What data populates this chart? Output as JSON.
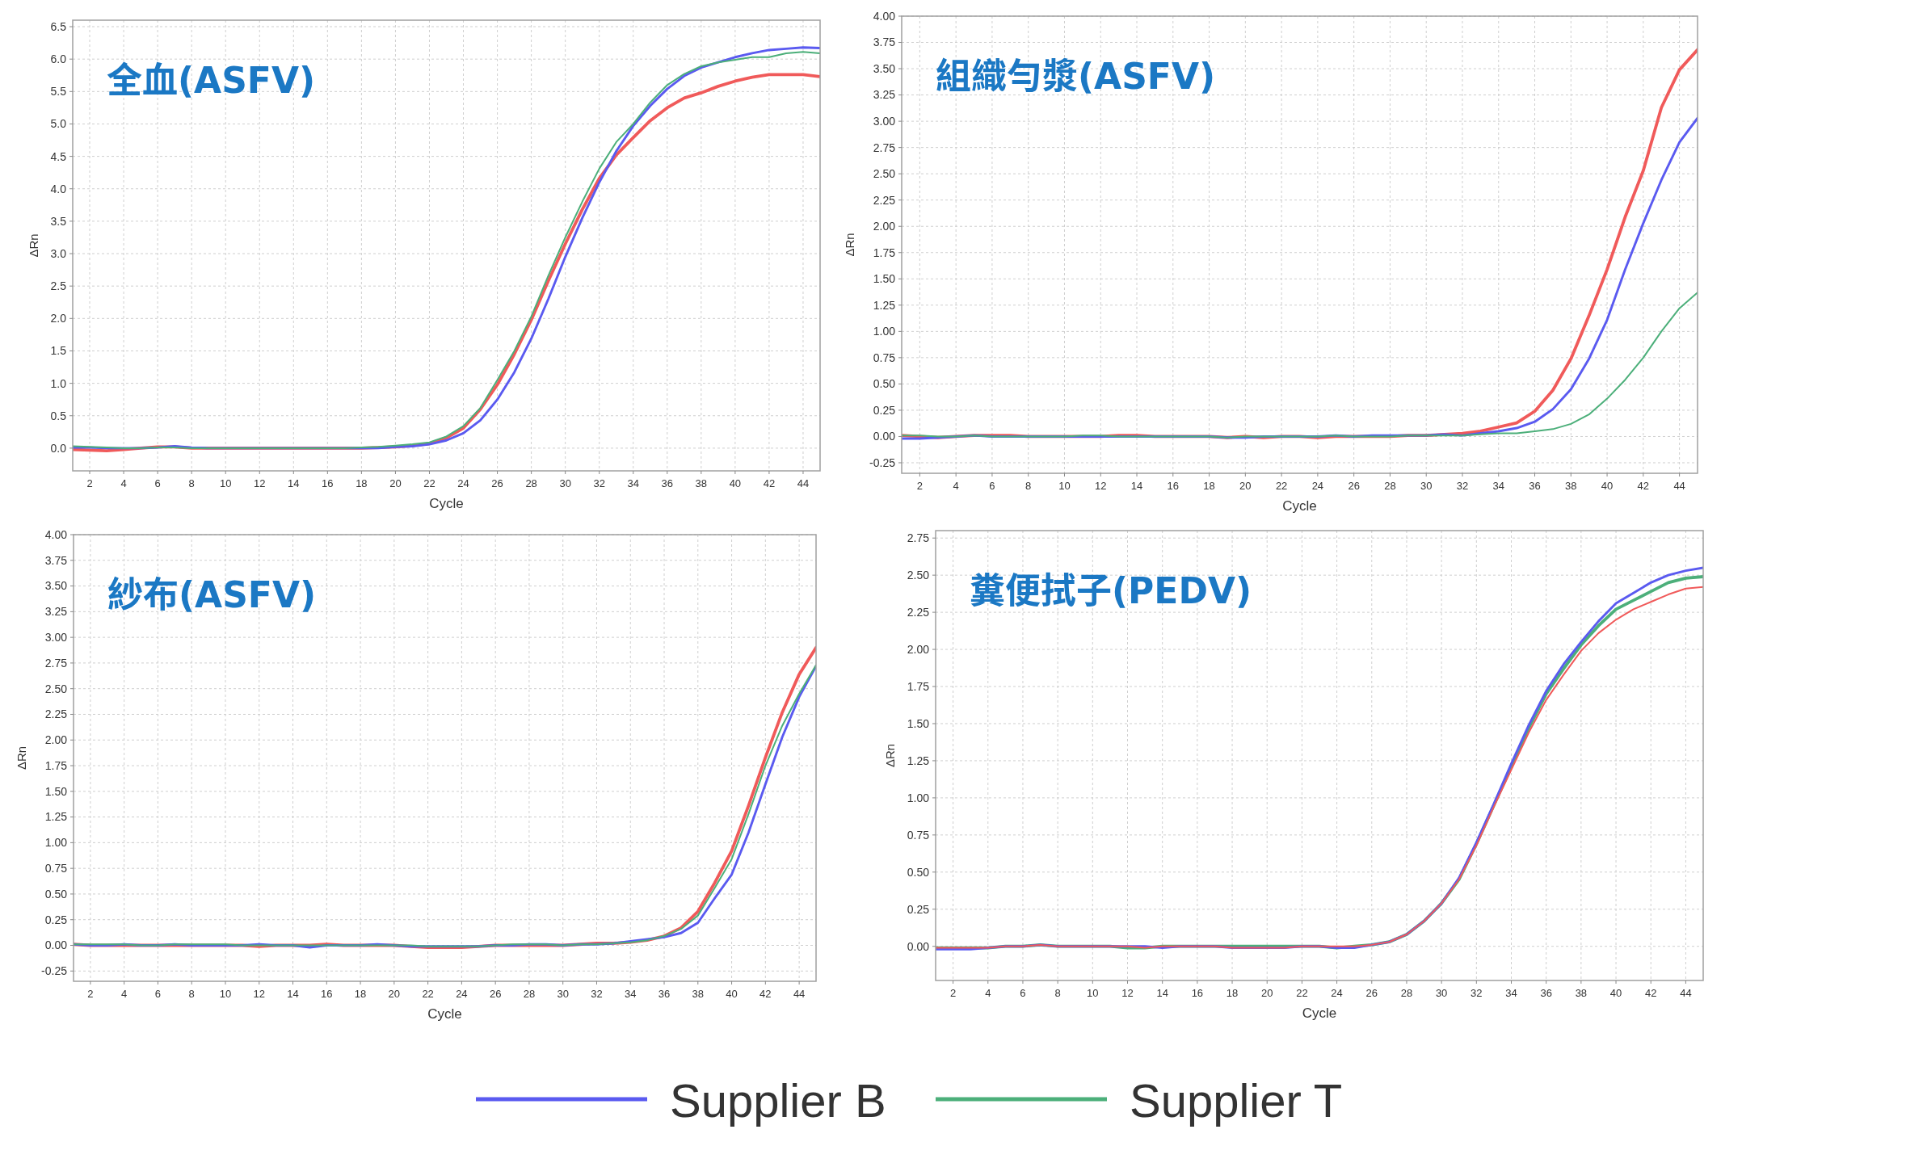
{
  "chart_data": [
    {
      "type": "line",
      "title": "全血(ASFV)",
      "xlabel": "Cycle",
      "ylabel": "ΔRn",
      "xlim": [
        1,
        45
      ],
      "xticks": [
        2,
        4,
        6,
        8,
        10,
        12,
        14,
        16,
        18,
        20,
        22,
        24,
        26,
        28,
        30,
        32,
        34,
        36,
        38,
        40,
        42,
        44
      ],
      "ylim": [
        -0.35,
        6.6
      ],
      "yticks": [
        {
          "value": 0,
          "label": "0.0"
        },
        0.5,
        {
          "value": 1,
          "label": "1.0"
        },
        1.5,
        {
          "value": 2,
          "label": "2.0"
        },
        2.5,
        {
          "value": 3,
          "label": "3.0"
        },
        3.5,
        {
          "value": 4,
          "label": "4.0"
        },
        4.5,
        {
          "value": 5,
          "label": "5.0"
        },
        5.5,
        {
          "value": 6,
          "label": "6.0"
        },
        6.5
      ],
      "grid": true,
      "legend": "bottom",
      "x": [
        1,
        2,
        3,
        4,
        5,
        6,
        7,
        8,
        9,
        10,
        11,
        12,
        13,
        14,
        15,
        16,
        17,
        18,
        19,
        20,
        21,
        22,
        23,
        24,
        25,
        26,
        27,
        28,
        29,
        30,
        31,
        32,
        33,
        34,
        35,
        36,
        37,
        38,
        39,
        40,
        41,
        42,
        43,
        44,
        45
      ],
      "series": [
        {
          "color": "#f05a5a",
          "values": [
            -0.02,
            -0.03,
            -0.04,
            -0.02,
            0,
            0.02,
            0.02,
            0,
            0,
            0,
            0,
            0,
            0,
            0,
            0,
            0,
            0,
            0,
            0.01,
            0.02,
            0.04,
            0.07,
            0.16,
            0.31,
            0.6,
            0.98,
            1.45,
            1.98,
            2.58,
            3.15,
            3.68,
            4.16,
            4.52,
            4.79,
            5.05,
            5.25,
            5.4,
            5.48,
            5.58,
            5.66,
            5.72,
            5.76,
            5.76,
            5.76,
            5.73
          ]
        },
        {
          "name": "Supplier B",
          "color": "#5a5af0",
          "values": [
            0.01,
            0.01,
            0,
            0,
            0,
            0.01,
            0.03,
            0.01,
            0,
            0,
            0,
            0,
            0,
            0,
            0,
            0,
            0,
            0,
            0,
            0.02,
            0.03,
            0.06,
            0.12,
            0.23,
            0.43,
            0.75,
            1.17,
            1.69,
            2.3,
            2.95,
            3.55,
            4.1,
            4.58,
            4.97,
            5.28,
            5.54,
            5.74,
            5.87,
            5.95,
            6.03,
            6.09,
            6.14,
            6.16,
            6.18,
            6.17
          ]
        },
        {
          "name": "Supplier T",
          "color": "#4caf7a",
          "values": [
            0.03,
            0.02,
            0.01,
            0,
            0,
            0.01,
            0.01,
            0,
            0,
            0,
            0,
            0,
            0,
            0,
            0,
            0,
            0,
            0.01,
            0.02,
            0.04,
            0.06,
            0.09,
            0.18,
            0.34,
            0.62,
            1.05,
            1.5,
            2.03,
            2.66,
            3.25,
            3.8,
            4.31,
            4.72,
            5.0,
            5.33,
            5.6,
            5.77,
            5.89,
            5.95,
            5.99,
            6.03,
            6.03,
            6.09,
            6.11,
            6.09
          ]
        }
      ]
    },
    {
      "type": "line",
      "title": "組織勻漿(ASFV)",
      "xlabel": "Cycle",
      "ylabel": "ΔRn",
      "xlim": [
        1,
        45
      ],
      "xticks": [
        2,
        4,
        6,
        8,
        10,
        12,
        14,
        16,
        18,
        20,
        22,
        24,
        26,
        28,
        30,
        32,
        34,
        36,
        38,
        40,
        42,
        44
      ],
      "ylim": [
        -0.35,
        4.0
      ],
      "yticks": [
        -0.25,
        {
          "value": 0,
          "label": "0.00"
        },
        0.25,
        {
          "value": 0.5,
          "label": "0.50"
        },
        0.75,
        {
          "value": 1,
          "label": "1.00"
        },
        1.25,
        {
          "value": 1.5,
          "label": "1.50"
        },
        1.75,
        {
          "value": 2,
          "label": "2.00"
        },
        2.25,
        {
          "value": 2.5,
          "label": "2.50"
        },
        2.75,
        {
          "value": 3,
          "label": "3.00"
        },
        3.25,
        {
          "value": 3.5,
          "label": "3.50"
        },
        3.75,
        {
          "value": 4,
          "label": "4.00"
        }
      ],
      "grid": true,
      "legend": "bottom",
      "x": [
        1,
        2,
        3,
        4,
        5,
        6,
        7,
        8,
        9,
        10,
        11,
        12,
        13,
        14,
        15,
        16,
        17,
        18,
        19,
        20,
        21,
        22,
        23,
        24,
        25,
        26,
        27,
        28,
        29,
        30,
        31,
        32,
        33,
        34,
        35,
        36,
        37,
        38,
        39,
        40,
        41,
        42,
        43,
        44,
        45
      ],
      "series": [
        {
          "color": "#f05a5a",
          "values": [
            0.01,
            0,
            -0.01,
            0,
            0.01,
            0.01,
            0.01,
            0,
            0,
            0,
            0,
            0,
            0.01,
            0.01,
            0,
            0,
            0,
            0,
            -0.01,
            0,
            -0.01,
            0,
            0,
            -0.01,
            0,
            0,
            0,
            0,
            0.01,
            0.01,
            0.02,
            0.03,
            0.05,
            0.09,
            0.13,
            0.24,
            0.44,
            0.74,
            1.15,
            1.59,
            2.09,
            2.53,
            3.13,
            3.49,
            3.68
          ]
        },
        {
          "name": "Supplier B",
          "color": "#5a5af0",
          "values": [
            -0.02,
            -0.02,
            -0.01,
            0,
            0.01,
            0,
            0,
            0,
            0,
            0,
            0,
            0,
            0,
            0,
            0,
            0,
            0,
            0,
            -0.01,
            -0.01,
            0,
            0,
            0,
            0,
            0.01,
            0,
            0.01,
            0.01,
            0.01,
            0.01,
            0.02,
            0.01,
            0.03,
            0.05,
            0.08,
            0.14,
            0.26,
            0.45,
            0.74,
            1.11,
            1.59,
            2.03,
            2.44,
            2.8,
            3.03
          ]
        },
        {
          "name": "Supplier T",
          "color": "#4caf7a",
          "values": [
            0.01,
            0.01,
            0,
            0,
            0.01,
            0,
            0,
            0,
            0,
            0,
            0.01,
            0.01,
            0,
            0,
            0,
            0,
            0,
            0,
            -0.01,
            0,
            0,
            0,
            0,
            0,
            0.01,
            0,
            0,
            0,
            0.01,
            0.01,
            0.01,
            0.01,
            0.02,
            0.03,
            0.03,
            0.05,
            0.07,
            0.12,
            0.21,
            0.36,
            0.54,
            0.75,
            1.0,
            1.22,
            1.37
          ]
        }
      ]
    },
    {
      "type": "line",
      "title": "紗布(ASFV)",
      "xlabel": "Cycle",
      "ylabel": "ΔRn",
      "xlim": [
        1,
        45
      ],
      "xticks": [
        2,
        4,
        6,
        8,
        10,
        12,
        14,
        16,
        18,
        20,
        22,
        24,
        26,
        28,
        30,
        32,
        34,
        36,
        38,
        40,
        42,
        44
      ],
      "ylim": [
        -0.35,
        4.0
      ],
      "yticks": [
        -0.25,
        {
          "value": 0,
          "label": "0.00"
        },
        0.25,
        {
          "value": 0.5,
          "label": "0.50"
        },
        0.75,
        {
          "value": 1,
          "label": "1.00"
        },
        1.25,
        {
          "value": 1.5,
          "label": "1.50"
        },
        1.75,
        {
          "value": 2,
          "label": "2.00"
        },
        2.25,
        {
          "value": 2.5,
          "label": "2.50"
        },
        2.75,
        {
          "value": 3,
          "label": "3.00"
        },
        3.25,
        {
          "value": 3.5,
          "label": "3.50"
        },
        3.75,
        {
          "value": 4,
          "label": "4.00"
        }
      ],
      "grid": true,
      "legend": "bottom",
      "x": [
        1,
        2,
        3,
        4,
        5,
        6,
        7,
        8,
        9,
        10,
        11,
        12,
        13,
        14,
        15,
        16,
        17,
        18,
        19,
        20,
        21,
        22,
        23,
        24,
        25,
        26,
        27,
        28,
        29,
        30,
        31,
        32,
        33,
        34,
        35,
        36,
        37,
        38,
        39,
        40,
        41,
        42,
        43,
        44,
        45
      ],
      "series": [
        {
          "color": "#f05a5a",
          "values": [
            0.01,
            0,
            0,
            0,
            0,
            0,
            0,
            0,
            0,
            0,
            0,
            -0.01,
            0,
            0,
            0,
            0.01,
            0,
            0,
            0,
            0,
            -0.01,
            -0.02,
            -0.02,
            -0.02,
            -0.01,
            0,
            0,
            0,
            0,
            0,
            0.01,
            0.02,
            0.02,
            0.03,
            0.05,
            0.09,
            0.17,
            0.33,
            0.61,
            0.92,
            1.36,
            1.83,
            2.27,
            2.64,
            2.9
          ]
        },
        {
          "name": "Supplier B",
          "color": "#5a5af0",
          "values": [
            0.01,
            0,
            0,
            0.01,
            0,
            0,
            0.01,
            0,
            0,
            0,
            0,
            0.01,
            0,
            0,
            -0.02,
            0,
            0,
            0,
            0.01,
            0,
            -0.01,
            -0.01,
            -0.01,
            -0.01,
            -0.01,
            0,
            0,
            0.01,
            0.01,
            0,
            0.01,
            0.01,
            0.02,
            0.04,
            0.06,
            0.08,
            0.12,
            0.22,
            0.46,
            0.69,
            1.1,
            1.57,
            2.03,
            2.42,
            2.72
          ]
        },
        {
          "name": "Supplier T",
          "color": "#4caf7a",
          "values": [
            0.01,
            0.01,
            0.01,
            0.01,
            0,
            0,
            0.01,
            0.01,
            0.01,
            0.01,
            0,
            0,
            0,
            0,
            0,
            0,
            0,
            0,
            0,
            0,
            0,
            -0.01,
            -0.01,
            -0.01,
            -0.01,
            0,
            0.01,
            0.01,
            0.01,
            0,
            0.01,
            0.01,
            0.02,
            0.03,
            0.05,
            0.09,
            0.16,
            0.29,
            0.56,
            0.84,
            1.28,
            1.75,
            2.14,
            2.45,
            2.73
          ]
        }
      ]
    },
    {
      "type": "line",
      "title": "糞便拭子(PEDV)",
      "xlabel": "Cycle",
      "ylabel": "ΔRn",
      "xlim": [
        1,
        45
      ],
      "xticks": [
        2,
        4,
        6,
        8,
        10,
        12,
        14,
        16,
        18,
        20,
        22,
        24,
        26,
        28,
        30,
        32,
        34,
        36,
        38,
        40,
        42,
        44
      ],
      "ylim": [
        -0.23,
        2.8
      ],
      "yticks": [
        {
          "value": 0,
          "label": "0.00"
        },
        0.25,
        {
          "value": 0.5,
          "label": "0.50"
        },
        0.75,
        {
          "value": 1,
          "label": "1.00"
        },
        1.25,
        {
          "value": 1.5,
          "label": "1.50"
        },
        1.75,
        {
          "value": 2,
          "label": "2.00"
        },
        2.25,
        {
          "value": 2.5,
          "label": "2.50"
        },
        2.75
      ],
      "grid": true,
      "legend": "bottom",
      "x": [
        1,
        2,
        3,
        4,
        5,
        6,
        7,
        8,
        9,
        10,
        11,
        12,
        13,
        14,
        15,
        16,
        17,
        18,
        19,
        20,
        21,
        22,
        23,
        24,
        25,
        26,
        27,
        28,
        29,
        30,
        31,
        32,
        33,
        34,
        35,
        36,
        37,
        38,
        39,
        40,
        41,
        42,
        43,
        44,
        45
      ],
      "series": [
        {
          "name": "Supplier T",
          "color": "#4caf7a",
          "values": [
            -0.01,
            -0.01,
            -0.01,
            -0.01,
            0,
            0,
            0.01,
            0,
            0,
            0,
            0,
            -0.01,
            -0.01,
            0,
            0,
            0,
            0,
            0,
            0,
            0,
            0,
            0,
            0,
            -0.01,
            0,
            0.01,
            0.03,
            0.08,
            0.17,
            0.29,
            0.45,
            0.69,
            0.95,
            1.21,
            1.47,
            1.7,
            1.87,
            2.03,
            2.16,
            2.27,
            2.33,
            2.39,
            2.45,
            2.48,
            2.49
          ]
        },
        {
          "name": "Supplier B",
          "color": "#5a5af0",
          "values": [
            -0.02,
            -0.02,
            -0.02,
            -0.01,
            0,
            0,
            0.01,
            0,
            0,
            0,
            0,
            0,
            0,
            -0.01,
            0,
            0,
            0,
            -0.01,
            -0.01,
            -0.01,
            -0.01,
            0,
            0,
            -0.01,
            -0.01,
            0.01,
            0.03,
            0.08,
            0.17,
            0.29,
            0.46,
            0.7,
            0.96,
            1.23,
            1.49,
            1.72,
            1.9,
            2.05,
            2.19,
            2.31,
            2.38,
            2.45,
            2.5,
            2.53,
            2.55
          ]
        },
        {
          "color": "#f05a5a",
          "values": [
            -0.01,
            -0.01,
            -0.01,
            -0.01,
            0,
            0,
            0.01,
            0,
            0,
            0,
            0,
            0,
            -0.01,
            0,
            0,
            0,
            0,
            -0.01,
            -0.01,
            -0.01,
            -0.01,
            0,
            0,
            0,
            0,
            0.01,
            0.03,
            0.08,
            0.17,
            0.29,
            0.45,
            0.68,
            0.94,
            1.19,
            1.44,
            1.66,
            1.83,
            1.99,
            2.11,
            2.2,
            2.27,
            2.32,
            2.37,
            2.41,
            2.42
          ]
        }
      ]
    }
  ]
}
